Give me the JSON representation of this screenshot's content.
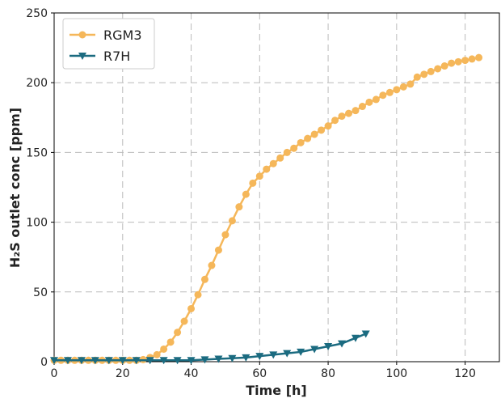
{
  "chart_data": {
    "type": "line",
    "xlabel": "Time [h]",
    "ylabel": "H₂S outlet conc [ppm]",
    "xlim": [
      0,
      130
    ],
    "ylim": [
      0,
      250
    ],
    "xticks": [
      0,
      20,
      40,
      60,
      80,
      100,
      120
    ],
    "yticks": [
      0,
      50,
      100,
      150,
      200,
      250
    ],
    "grid": true,
    "legend": "upper left",
    "series": [
      {
        "name": "RGM3",
        "color": "#f5b75a",
        "marker": "circle",
        "x": [
          0,
          2,
          4,
          6,
          8,
          10,
          12,
          14,
          16,
          18,
          20,
          22,
          24,
          26,
          28,
          30,
          32,
          34,
          36,
          38,
          40,
          42,
          44,
          46,
          48,
          50,
          52,
          54,
          56,
          58,
          60,
          62,
          64,
          66,
          68,
          70,
          72,
          74,
          76,
          78,
          80,
          82,
          84,
          86,
          88,
          90,
          92,
          94,
          96,
          98,
          100,
          102,
          104,
          106,
          108,
          110,
          112,
          114,
          116,
          118,
          120,
          122,
          124
        ],
        "values": [
          1,
          1,
          1,
          1,
          1,
          1,
          1,
          1,
          1,
          1,
          1,
          1,
          1,
          1.5,
          3,
          5,
          9,
          14,
          21,
          29,
          38,
          48,
          59,
          69,
          80,
          91,
          101,
          111,
          120,
          128,
          133,
          138,
          142,
          146,
          150,
          153,
          157,
          160,
          163,
          166,
          169,
          173,
          176,
          178,
          180,
          183,
          186,
          188,
          191,
          193,
          195,
          197,
          199,
          204,
          206,
          208,
          210,
          212,
          214,
          215,
          216,
          217,
          218
        ]
      },
      {
        "name": "R7H",
        "color": "#1b6b80",
        "marker": "triangle-down",
        "x": [
          0,
          4,
          8,
          12,
          16,
          20,
          24,
          28,
          32,
          36,
          40,
          44,
          48,
          52,
          56,
          60,
          64,
          68,
          72,
          76,
          80,
          84,
          88,
          91
        ],
        "values": [
          1,
          1,
          1,
          1,
          1,
          1,
          1,
          1,
          1,
          1,
          1,
          1.5,
          2,
          2.5,
          3,
          4,
          5,
          6,
          7,
          9,
          11,
          13,
          17,
          20
        ]
      }
    ]
  }
}
